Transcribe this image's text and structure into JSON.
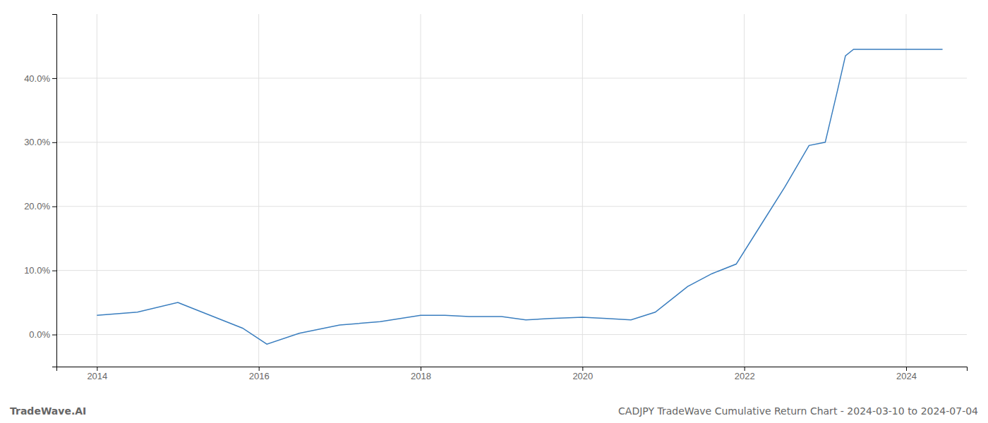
{
  "chart_data": {
    "type": "line",
    "title": "CADJPY TradeWave Cumulative Return Chart - 2024-03-10 to 2024-07-04",
    "annotations": [
      "TradeWave.AI"
    ],
    "x": [
      2014.0,
      2014.5,
      2015.0,
      2015.3,
      2015.8,
      2016.1,
      2016.5,
      2017.0,
      2017.5,
      2018.0,
      2018.3,
      2018.6,
      2019.0,
      2019.3,
      2019.6,
      2020.0,
      2020.3,
      2020.6,
      2020.9,
      2021.1,
      2021.3,
      2021.6,
      2021.9,
      2022.2,
      2022.5,
      2022.8,
      2023.0,
      2023.15,
      2023.25,
      2023.35,
      2024.0,
      2024.45
    ],
    "values": [
      3.0,
      3.5,
      5.0,
      3.5,
      1.0,
      -1.5,
      0.2,
      1.5,
      2.0,
      3.0,
      3.0,
      2.8,
      2.8,
      2.3,
      2.5,
      2.7,
      2.5,
      2.3,
      3.5,
      5.5,
      7.5,
      9.5,
      11.0,
      17.0,
      23.0,
      29.5,
      30.0,
      38.0,
      43.5,
      44.5,
      44.5,
      44.5
    ],
    "color": "#3a7ebf",
    "xlim": [
      2013.5,
      2024.75
    ],
    "ylim": [
      -5,
      50
    ],
    "xticks": [
      2014,
      2016,
      2018,
      2020,
      2022,
      2024
    ],
    "yticks": [
      {
        "value": 0.0,
        "label": "0.0%"
      },
      {
        "value": 10.0,
        "label": "10.0%"
      },
      {
        "value": 20.0,
        "label": "20.0%"
      },
      {
        "value": 30.0,
        "label": "30.0%"
      },
      {
        "value": 40.0,
        "label": "40.0%"
      }
    ],
    "grid": true
  }
}
